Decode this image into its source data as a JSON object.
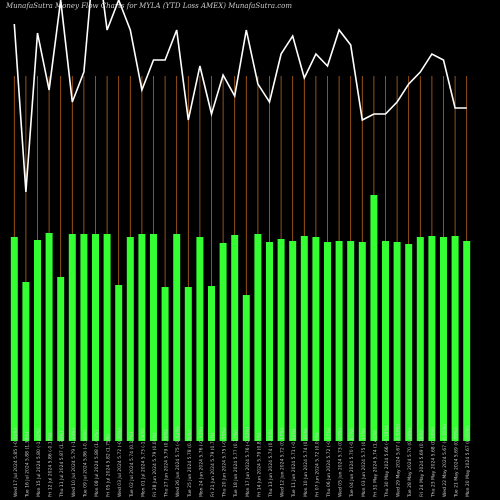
{
  "title": "MunafaSutra  Money Flow  Charts for MYLA                    (YTD Loss AMEX) MunafaSutra.com",
  "colors": {
    "background": "#000000",
    "bar": "#33ff33",
    "bar_tall": "#33ff33",
    "line": "#ffffff",
    "vgrid": "#b8651b",
    "text": "#cccccc"
  },
  "chart_data": {
    "type": "bar",
    "title": "MunafaSutra  Money Flow  Charts for MYLA                    (YTD Loss AMEX) MunafaSutra.com",
    "xlabel": "",
    "ylabel": "",
    "grid": "vertical lines",
    "categories": [
      "Wed 17 Jul 2024 5.85 (-0.51%)",
      "Tue 16 Jul 2024 5.88 (1.38%)",
      "Mon 15 Jul 2024 5.80 (-1.02%)",
      "Fri 12 Jul 2024 5.86 (-0.17%)",
      "Thu 11 Jul 2024 5.87 (1.38%)",
      "Wed 10 Jul 2024 5.79 (-1.19%)",
      "Tue 09 Jul 2024 5.86 (-0.34%)",
      "Mon 08 Jul 2024 5.88 (1.03%)",
      "Fri 05 Jul 2024 5.82 (1.75%)",
      "Wed 03 Jul 2024 5.72 (-0.35%)",
      "Tue 02 Jul 2024 5.74 (0.17%)",
      "Mon 01 Jul 2024 5.73 (-1.04%)",
      "Fri 28 Jun 2024 5.79 (0.00%)",
      "Thu 27 Jun 2024 5.79 (0.70%)",
      "Wed 26 Jun 2024 5.75 (-0.52%)",
      "Tue 25 Jun 2024 5.78 (0.35%)",
      "Mon 24 Jun 2024 5.76 (-0.52%)",
      "Fri 21 Jun 2024 5.79 (0.70%)",
      "Thu 20 Jun 2024 5.75 (-0.35%)",
      "Tue 18 Jun 2024 5.77 (0.17%)",
      "Mon 17 Jun 2024 5.76 (-0.52%)",
      "Fri 14 Jun 2024 5.79 (0.87%)",
      "Thu 13 Jun 2024 5.74 (0.35%)",
      "Wed 12 Jun 2024 5.72 (0.17%)",
      "Tue 11 Jun 2024 5.71 (-0.52%)",
      "Mon 10 Jun 2024 5.74 (0.35%)",
      "Fri 07 Jun 2024 5.72 (0.00%)",
      "Thu 06 Jun 2024 5.72 (-0.17%)",
      "Wed 05 Jun 2024 5.73 (0.53%)",
      "Tue 04 Jun 2024 5.70 (-0.87%)",
      "Mon 03 Jun 2024 5.75 (0.17%)",
      "Fri 31 May 2024 5.74 (1.41%)",
      "Thu 30 May 2024 5.66 (-0.18%)",
      "Wed 29 May 2024 5.67 (-0.53%)",
      "Tue 28 May 2024 5.70 (0.18%)",
      "Fri 24 May 2024 5.69 (0.18%)",
      "Thu 23 May 2024 5.68 (0.18%)",
      "Wed 22 May 2024 5.67 (-0.35%)",
      "Tue 21 May 2024 5.69 (0.35%)",
      "Mon 20 May 2024 5.67 (0.00%)"
    ],
    "values": [
      204,
      159,
      201,
      208,
      164,
      207,
      207,
      207,
      207,
      156,
      204,
      207,
      207,
      154,
      207,
      154,
      204,
      155,
      198,
      206,
      146,
      207,
      199,
      202,
      200,
      205,
      204,
      199,
      200,
      200,
      199,
      246,
      200,
      199,
      197,
      204,
      205,
      204,
      205,
      200
    ],
    "line_values": [
      920,
      360,
      890,
      700,
      1000,
      660,
      760,
      1200,
      900,
      1000,
      900,
      700,
      800,
      800,
      900,
      600,
      780,
      620,
      750,
      680,
      900,
      720,
      660,
      820,
      880,
      740,
      820,
      780,
      900,
      850,
      600,
      620,
      620,
      660,
      720,
      760,
      820,
      800,
      640,
      640
    ],
    "ylim": [
      0,
      500
    ]
  }
}
